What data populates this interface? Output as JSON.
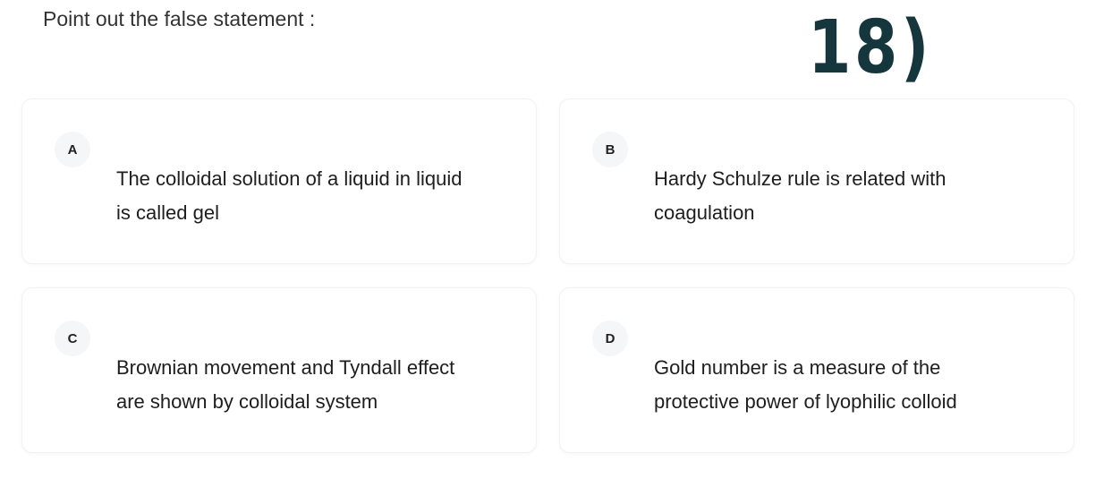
{
  "question": "Point out the false statement :",
  "annotation": "18)",
  "options": [
    {
      "letter": "A",
      "lines": [
        "The colloidal solution of a liquid in liquid",
        "is called gel"
      ]
    },
    {
      "letter": "B",
      "lines": [
        "Hardy Schulze rule is related with",
        "coagulation"
      ]
    },
    {
      "letter": "C",
      "lines": [
        "Brownian movement and Tyndall effect",
        "are shown by colloidal system"
      ]
    },
    {
      "letter": "D",
      "lines": [
        "Gold number is a measure of the",
        "protective power of lyophilic colloid"
      ]
    }
  ]
}
